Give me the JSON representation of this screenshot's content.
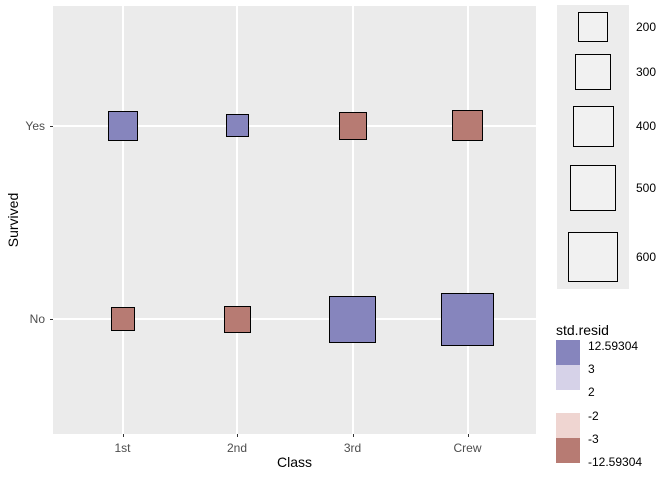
{
  "chart_data": {
    "type": "scatter",
    "subtype": "square-balloon-grid",
    "title": "",
    "xlabel": "Class",
    "ylabel": "Survived",
    "x_categories": [
      "1st",
      "2nd",
      "3rd",
      "Crew"
    ],
    "y_categories": [
      "Yes",
      "No"
    ],
    "grid": "on",
    "legend_position": "right",
    "cells": [
      {
        "x": "1st",
        "y": "Yes",
        "count": 203,
        "resid_level": "high_positive"
      },
      {
        "x": "2nd",
        "y": "Yes",
        "count": 118,
        "resid_level": "high_positive"
      },
      {
        "x": "3rd",
        "y": "Yes",
        "count": 178,
        "resid_level": "high_negative"
      },
      {
        "x": "Crew",
        "y": "Yes",
        "count": 212,
        "resid_level": "high_negative"
      },
      {
        "x": "1st",
        "y": "No",
        "count": 122,
        "resid_level": "high_negative"
      },
      {
        "x": "2nd",
        "y": "No",
        "count": 167,
        "resid_level": "high_negative"
      },
      {
        "x": "3rd",
        "y": "No",
        "count": 528,
        "resid_level": "high_positive"
      },
      {
        "x": "Crew",
        "y": "No",
        "count": 673,
        "resid_level": "high_positive"
      }
    ],
    "size_legend": {
      "values": [
        200,
        300,
        400,
        500,
        600
      ]
    },
    "color_legend": {
      "title": "std.resid",
      "tick_labels": [
        "12.59304",
        "3",
        "2",
        "-2",
        "-3",
        "-12.59304"
      ],
      "segments": [
        {
          "from": "3",
          "to": "12.59304",
          "level": "high_positive"
        },
        {
          "from": "2",
          "to": "3",
          "level": "mid_positive"
        },
        {
          "from": "-3",
          "to": "-2",
          "level": "mid_negative"
        },
        {
          "from": "-12.59304",
          "to": "-3",
          "level": "high_negative"
        }
      ]
    },
    "colors": {
      "high_positive": "#8685BD",
      "mid_positive": "#D6D2E8",
      "mid_negative": "#EFD5D1",
      "high_negative": "#B77B73",
      "panel_bg": "#EBEBEB",
      "gridline": "#FFFFFF",
      "legend_strip_bg": "#ECECEC",
      "legend_key_fill": "#F1F1F1",
      "square_border": "#000000",
      "tick_label_color": "#4D4D4D",
      "tick_mark_color": "#333333"
    }
  }
}
